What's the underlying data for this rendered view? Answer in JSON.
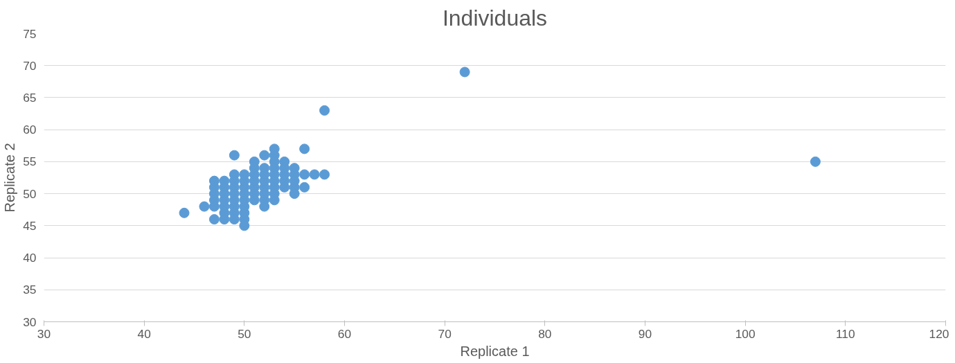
{
  "chart_data": {
    "type": "scatter",
    "title": "Individuals",
    "xlabel": "Replicate 1",
    "ylabel": "Replicate 2",
    "x": [
      44,
      46,
      47,
      47,
      47,
      47,
      47,
      47,
      48,
      48,
      48,
      48,
      48,
      48,
      48,
      49,
      49,
      49,
      49,
      49,
      49,
      49,
      49,
      49,
      50,
      50,
      50,
      50,
      50,
      50,
      50,
      50,
      50,
      51,
      51,
      51,
      51,
      51,
      51,
      51,
      52,
      52,
      52,
      52,
      52,
      52,
      52,
      52,
      53,
      53,
      53,
      53,
      53,
      53,
      53,
      53,
      53,
      54,
      54,
      54,
      54,
      54,
      55,
      55,
      55,
      55,
      55,
      56,
      56,
      56,
      57,
      58,
      58,
      72,
      107
    ],
    "series": [
      {
        "color": "#5b9bd5",
        "values": [
          47,
          48,
          46,
          48,
          49,
          50,
          51,
          52,
          46,
          47,
          48,
          49,
          50,
          51,
          52,
          46,
          47,
          48,
          49,
          50,
          51,
          52,
          53,
          56,
          45,
          46,
          47,
          48,
          49,
          50,
          51,
          52,
          53,
          49,
          50,
          51,
          52,
          53,
          54,
          55,
          48,
          49,
          50,
          51,
          52,
          53,
          54,
          56,
          49,
          50,
          51,
          52,
          53,
          54,
          55,
          56,
          57,
          51,
          52,
          53,
          54,
          55,
          50,
          51,
          52,
          53,
          54,
          51,
          53,
          57,
          53,
          53,
          63,
          69,
          55
        ]
      }
    ],
    "xlim": [
      30,
      120
    ],
    "xticks": [
      30,
      40,
      50,
      60,
      70,
      80,
      90,
      100,
      110,
      120
    ],
    "ylim": [
      30,
      75
    ],
    "yticks": [
      30,
      35,
      40,
      45,
      50,
      55,
      60,
      65,
      70,
      75
    ],
    "grid": "y",
    "marker": "circle"
  }
}
